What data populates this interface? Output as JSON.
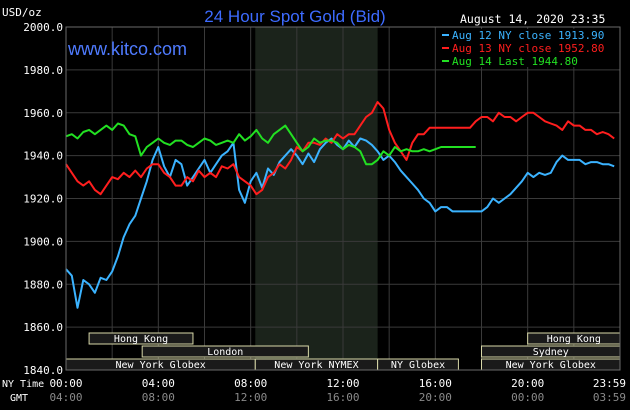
{
  "header": {
    "unit": "USD/oz",
    "title": "24 Hour Spot Gold (Bid)",
    "site": "www.kitco.com",
    "timestamp": "August 14, 2020 23:35"
  },
  "colors": {
    "aug12": "#3bb3ff",
    "aug13": "#ff1e1e",
    "aug14": "#22e022",
    "title": "#3d6bff",
    "grid": "#3a3a3a",
    "session_fill": "#1a1a1a",
    "nymex_shade": "#1b231b"
  },
  "chart_data": {
    "type": "line",
    "x_unit": "hours (NY time)",
    "xlim": [
      0,
      24
    ],
    "ylim": [
      1840,
      2000
    ],
    "grid": true,
    "legend_position": "top-right",
    "y_ticks": [
      {
        "value": 2000,
        "label": "2000.0"
      },
      {
        "value": 1980,
        "label": "1980.0"
      },
      {
        "value": 1960,
        "label": "1960.0"
      },
      {
        "value": 1940,
        "label": "1940.0"
      },
      {
        "value": 1920,
        "label": "1920.0"
      },
      {
        "value": 1900,
        "label": "1900.0"
      },
      {
        "value": 1880,
        "label": "1880.0"
      },
      {
        "value": 1860,
        "label": "1860.0"
      },
      {
        "value": 1840,
        "label": "1840.0"
      }
    ],
    "x_axis": {
      "ny_label": "NY Time",
      "gmt_label": "GMT",
      "ny_ticks": [
        {
          "hour": 0,
          "label": "00:00"
        },
        {
          "hour": 4,
          "label": "04:00"
        },
        {
          "hour": 8,
          "label": "08:00"
        },
        {
          "hour": 12,
          "label": "12:00"
        },
        {
          "hour": 16,
          "label": "16:00"
        },
        {
          "hour": 20,
          "label": "20:00"
        },
        {
          "hour": 24,
          "label": "23:59"
        }
      ],
      "gmt_ticks": [
        {
          "hour": 0,
          "label": "04:00"
        },
        {
          "hour": 4,
          "label": "08:00"
        },
        {
          "hour": 8,
          "label": "12:00"
        },
        {
          "hour": 12,
          "label": "16:00"
        },
        {
          "hour": 16,
          "label": "20:00"
        },
        {
          "hour": 20,
          "label": "00:00"
        },
        {
          "hour": 24,
          "label": "03:59"
        }
      ]
    },
    "shaded_region": {
      "name": "New York NYMEX",
      "start": 8.2,
      "end": 13.5
    },
    "sessions": [
      {
        "label": "Hong Kong",
        "start": 1.0,
        "end": 5.5,
        "row": 1
      },
      {
        "label": "London",
        "start": 3.3,
        "end": 10.5,
        "row": 2
      },
      {
        "label": "New York Globex",
        "start": 0.0,
        "end": 8.2,
        "row": 3
      },
      {
        "label": "New York NYMEX",
        "start": 8.2,
        "end": 13.5,
        "row": 3
      },
      {
        "label": "NY Globex",
        "start": 13.5,
        "end": 17.0,
        "row": 3
      },
      {
        "label": "Hong Kong",
        "start": 20.0,
        "end": 24.0,
        "row": 1
      },
      {
        "label": "Sydney",
        "start": 18.0,
        "end": 24.0,
        "row": 2
      },
      {
        "label": "New York Globex",
        "start": 18.0,
        "end": 24.0,
        "row": 3
      }
    ],
    "series": [
      {
        "name": "Aug 12 NY close 1913.90",
        "key": "aug12",
        "x": [
          0,
          0.25,
          0.5,
          0.75,
          1,
          1.25,
          1.5,
          1.75,
          2,
          2.25,
          2.5,
          2.75,
          3,
          3.25,
          3.5,
          3.75,
          4,
          4.25,
          4.5,
          4.75,
          5,
          5.25,
          5.5,
          5.75,
          6,
          6.25,
          6.5,
          6.75,
          7,
          7.25,
          7.5,
          7.75,
          8,
          8.25,
          8.5,
          8.75,
          9,
          9.25,
          9.5,
          9.75,
          10,
          10.25,
          10.5,
          10.75,
          11,
          11.25,
          11.5,
          11.75,
          12,
          12.25,
          12.5,
          12.75,
          13,
          13.25,
          13.5,
          13.75,
          14,
          14.25,
          14.5,
          14.75,
          15,
          15.25,
          15.5,
          15.75,
          16,
          16.25,
          16.5,
          16.75,
          17,
          17.25,
          17.5,
          17.75,
          18,
          18.25,
          18.5,
          18.75,
          19,
          19.25,
          19.5,
          19.75,
          20,
          20.25,
          20.5,
          20.75,
          21,
          21.25,
          21.5,
          21.75,
          22,
          22.25,
          22.5,
          22.75,
          23,
          23.25,
          23.5,
          23.75
        ],
        "y": [
          1887,
          1884,
          1869,
          1882,
          1880,
          1876,
          1883,
          1882,
          1886,
          1893,
          1902,
          1908,
          1912,
          1920,
          1928,
          1938,
          1944,
          1935,
          1930,
          1938,
          1936,
          1926,
          1930,
          1934,
          1938,
          1932,
          1936,
          1940,
          1942,
          1946,
          1924,
          1918,
          1928,
          1932,
          1925,
          1934,
          1931,
          1937,
          1940,
          1943,
          1940,
          1936,
          1941,
          1937,
          1943,
          1946,
          1948,
          1945,
          1943,
          1947,
          1944,
          1948,
          1947,
          1945,
          1942,
          1938,
          1940,
          1937,
          1933,
          1930,
          1927,
          1924,
          1920,
          1918,
          1914,
          1916,
          1916,
          1914,
          1914,
          1914,
          1914,
          1914,
          1914,
          1916,
          1920,
          1918,
          1920,
          1922,
          1925,
          1928,
          1932,
          1930,
          1932,
          1931,
          1932,
          1937,
          1940,
          1938,
          1938,
          1938,
          1936,
          1937,
          1937,
          1936,
          1936,
          1935
        ]
      },
      {
        "name": "Aug 13 NY close 1952.80",
        "key": "aug13",
        "x": [
          0,
          0.25,
          0.5,
          0.75,
          1,
          1.25,
          1.5,
          1.75,
          2,
          2.25,
          2.5,
          2.75,
          3,
          3.25,
          3.5,
          3.75,
          4,
          4.25,
          4.5,
          4.75,
          5,
          5.25,
          5.5,
          5.75,
          6,
          6.25,
          6.5,
          6.75,
          7,
          7.25,
          7.5,
          7.75,
          8,
          8.25,
          8.5,
          8.75,
          9,
          9.25,
          9.5,
          9.75,
          10,
          10.25,
          10.5,
          10.75,
          11,
          11.25,
          11.5,
          11.75,
          12,
          12.25,
          12.5,
          12.75,
          13,
          13.25,
          13.5,
          13.75,
          14,
          14.25,
          14.5,
          14.75,
          15,
          15.25,
          15.5,
          15.75,
          16,
          16.25,
          16.5,
          16.75,
          17,
          17.25,
          17.5,
          17.75,
          18,
          18.25,
          18.5,
          18.75,
          19,
          19.25,
          19.5,
          19.75,
          20,
          20.25,
          20.5,
          20.75,
          21,
          21.25,
          21.5,
          21.75,
          22,
          22.25,
          22.5,
          22.75,
          23,
          23.25,
          23.5,
          23.75
        ],
        "y": [
          1936,
          1932,
          1928,
          1926,
          1928,
          1924,
          1922,
          1926,
          1930,
          1929,
          1932,
          1930,
          1933,
          1930,
          1934,
          1936,
          1936,
          1932,
          1930,
          1926,
          1926,
          1930,
          1928,
          1933,
          1930,
          1932,
          1930,
          1935,
          1934,
          1936,
          1930,
          1928,
          1926,
          1922,
          1924,
          1930,
          1932,
          1936,
          1934,
          1938,
          1944,
          1942,
          1946,
          1946,
          1945,
          1948,
          1946,
          1950,
          1948,
          1950,
          1950,
          1954,
          1958,
          1960,
          1965,
          1962,
          1952,
          1946,
          1942,
          1938,
          1946,
          1950,
          1950,
          1953,
          1953,
          1953,
          1953,
          1953,
          1953,
          1953,
          1953,
          1956,
          1958,
          1958,
          1956,
          1960,
          1958,
          1958,
          1956,
          1958,
          1960,
          1960,
          1958,
          1956,
          1955,
          1954,
          1952,
          1956,
          1954,
          1954,
          1952,
          1952,
          1950,
          1951,
          1950,
          1948
        ]
      },
      {
        "name": "Aug 14 Last 1944.80",
        "key": "aug14",
        "x": [
          0,
          0.25,
          0.5,
          0.75,
          1,
          1.25,
          1.5,
          1.75,
          2,
          2.25,
          2.5,
          2.75,
          3,
          3.25,
          3.5,
          3.75,
          4,
          4.25,
          4.5,
          4.75,
          5,
          5.25,
          5.5,
          5.75,
          6,
          6.25,
          6.5,
          6.75,
          7,
          7.25,
          7.5,
          7.75,
          8,
          8.25,
          8.5,
          8.75,
          9,
          9.25,
          9.5,
          9.75,
          10,
          10.25,
          10.5,
          10.75,
          11,
          11.25,
          11.5,
          11.75,
          12,
          12.25,
          12.5,
          12.75,
          13,
          13.25,
          13.5,
          13.75,
          14,
          14.25,
          14.5,
          14.75,
          15,
          15.25,
          15.5,
          15.75,
          16,
          16.25,
          16.5,
          16.75,
          17,
          17.25,
          17.5,
          17.75
        ],
        "y": [
          1949,
          1950,
          1948,
          1951,
          1952,
          1950,
          1952,
          1954,
          1952,
          1955,
          1954,
          1950,
          1949,
          1940,
          1944,
          1946,
          1948,
          1946,
          1945,
          1947,
          1947,
          1945,
          1944,
          1946,
          1948,
          1947,
          1945,
          1946,
          1947,
          1946,
          1950,
          1947,
          1949,
          1952,
          1948,
          1946,
          1950,
          1952,
          1954,
          1950,
          1946,
          1942,
          1944,
          1948,
          1946,
          1947,
          1947,
          1946,
          1943,
          1945,
          1944,
          1942,
          1936,
          1936,
          1938,
          1942,
          1940,
          1944,
          1942,
          1943,
          1942,
          1942,
          1943,
          1942,
          1943,
          1944,
          1944,
          1944,
          1944,
          1944,
          1944,
          1944
        ]
      }
    ]
  }
}
